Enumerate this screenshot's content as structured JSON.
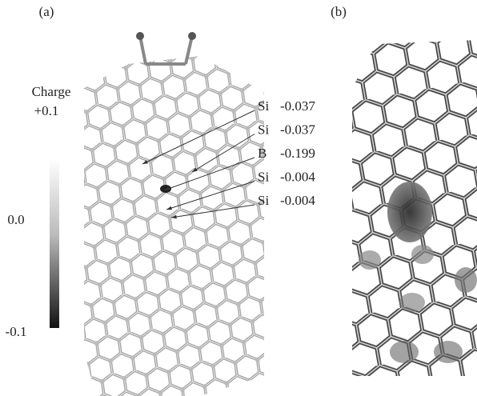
{
  "panels": {
    "a": "(a)",
    "b": "(b)"
  },
  "colorbar": {
    "title": "Charge",
    "top": "+0.1",
    "middle": "0.0",
    "bottom": "-0.1"
  },
  "annotations": [
    {
      "element": "Si",
      "value": "-0.037"
    },
    {
      "element": "Si",
      "value": "-0.037"
    },
    {
      "element": "B",
      "value": "-0.199"
    },
    {
      "element": "Si",
      "value": "-0.004"
    },
    {
      "element": "Si",
      "value": "-0.004"
    }
  ]
}
